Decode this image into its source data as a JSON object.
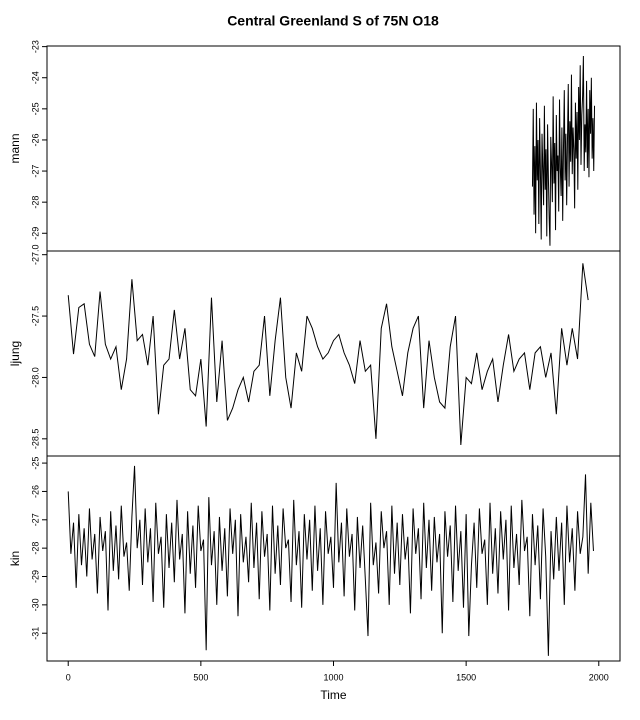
{
  "chart_data": [
    {
      "type": "line",
      "title": "Central Greenland S of 75N O18",
      "ylabel": "mann",
      "color": "#000000",
      "xlim": [
        -80,
        2080
      ],
      "ylim": [
        -29.57,
        -22.98
      ],
      "yticks": [
        -23,
        -24,
        -25,
        -26,
        -27,
        -28,
        -29
      ],
      "x": [
        1750,
        1753,
        1756,
        1759,
        1762,
        1765,
        1768,
        1771,
        1774,
        1777,
        1780,
        1783,
        1786,
        1789,
        1792,
        1795,
        1798,
        1801,
        1804,
        1807,
        1810,
        1813,
        1816,
        1819,
        1822,
        1825,
        1828,
        1831,
        1834,
        1837,
        1840,
        1843,
        1846,
        1849,
        1852,
        1855,
        1858,
        1861,
        1864,
        1867,
        1870,
        1873,
        1876,
        1879,
        1882,
        1885,
        1888,
        1891,
        1894,
        1897,
        1900,
        1903,
        1906,
        1909,
        1912,
        1915,
        1918,
        1921,
        1924,
        1927,
        1930,
        1933,
        1936,
        1939,
        1942,
        1945,
        1948,
        1951,
        1954,
        1957,
        1960,
        1963,
        1966,
        1969,
        1972,
        1975,
        1978,
        1981,
        1984
      ],
      "values": [
        -27.5,
        -25.0,
        -28.4,
        -26.2,
        -29.0,
        -24.8,
        -27.3,
        -26.0,
        -28.7,
        -25.3,
        -27.0,
        -29.2,
        -25.8,
        -26.9,
        -28.1,
        -24.9,
        -27.6,
        -26.3,
        -29.1,
        -25.5,
        -27.2,
        -28.5,
        -29.4,
        -25.9,
        -26.8,
        -28.0,
        -24.6,
        -27.4,
        -26.1,
        -28.9,
        -25.2,
        -27.0,
        -26.5,
        -28.3,
        -24.7,
        -26.9,
        -27.8,
        -25.6,
        -28.6,
        -26.2,
        -24.4,
        -27.3,
        -25.8,
        -28.1,
        -26.0,
        -24.2,
        -27.5,
        -25.4,
        -26.7,
        -23.9,
        -27.1,
        -25.6,
        -26.3,
        -28.2,
        -24.8,
        -26.6,
        -25.1,
        -27.6,
        -24.3,
        -26.0,
        -23.6,
        -26.8,
        -25.2,
        -24.6,
        -23.3,
        -27.0,
        -25.5,
        -26.4,
        -24.1,
        -26.9,
        -25.0,
        -27.2,
        -24.4,
        -25.8,
        -24.0,
        -26.6,
        -25.3,
        -27.0,
        -24.9
      ]
    },
    {
      "type": "line",
      "ylabel": "ljung",
      "color": "#000000",
      "xlim": [
        -80,
        2080
      ],
      "ylim": [
        -28.64,
        -26.97
      ],
      "yticks": [
        {
          "value": -27,
          "label": "-27.0"
        },
        -27.5,
        {
          "value": -28,
          "label": "-28.0"
        },
        -28.5
      ],
      "x": [
        0,
        20,
        40,
        60,
        80,
        100,
        120,
        140,
        160,
        180,
        200,
        220,
        240,
        260,
        280,
        300,
        320,
        340,
        360,
        380,
        400,
        420,
        440,
        460,
        480,
        500,
        520,
        540,
        560,
        580,
        600,
        620,
        640,
        660,
        680,
        700,
        720,
        740,
        760,
        780,
        800,
        820,
        840,
        860,
        880,
        900,
        920,
        940,
        960,
        980,
        1000,
        1020,
        1040,
        1060,
        1080,
        1100,
        1120,
        1140,
        1160,
        1180,
        1200,
        1220,
        1240,
        1260,
        1280,
        1300,
        1320,
        1340,
        1360,
        1380,
        1400,
        1420,
        1440,
        1460,
        1480,
        1500,
        1520,
        1540,
        1560,
        1580,
        1600,
        1620,
        1640,
        1660,
        1680,
        1700,
        1720,
        1740,
        1760,
        1780,
        1800,
        1820,
        1840,
        1860,
        1880,
        1900,
        1920,
        1940,
        1960
      ],
      "values": [
        -27.33,
        -27.81,
        -27.43,
        -27.4,
        -27.73,
        -27.83,
        -27.3,
        -27.73,
        -27.85,
        -27.75,
        -28.1,
        -27.85,
        -27.2,
        -27.7,
        -27.65,
        -27.9,
        -27.5,
        -28.3,
        -27.9,
        -27.85,
        -27.45,
        -27.85,
        -27.6,
        -28.1,
        -28.15,
        -27.85,
        -28.4,
        -27.35,
        -28.2,
        -27.7,
        -28.35,
        -28.25,
        -28.1,
        -28.0,
        -28.2,
        -27.95,
        -27.9,
        -27.5,
        -28.15,
        -27.7,
        -27.35,
        -28.0,
        -28.25,
        -27.8,
        -27.95,
        -27.5,
        -27.6,
        -27.75,
        -27.85,
        -27.8,
        -27.7,
        -27.65,
        -27.8,
        -27.9,
        -28.05,
        -27.7,
        -27.95,
        -27.9,
        -28.5,
        -27.6,
        -27.4,
        -27.75,
        -27.95,
        -28.15,
        -27.8,
        -27.6,
        -27.5,
        -28.25,
        -27.7,
        -28.0,
        -28.2,
        -28.25,
        -27.75,
        -27.5,
        -28.55,
        -28.0,
        -28.05,
        -27.8,
        -28.1,
        -27.95,
        -27.85,
        -28.2,
        -27.9,
        -27.65,
        -27.95,
        -27.85,
        -27.8,
        -28.1,
        -27.8,
        -27.75,
        -28.0,
        -27.8,
        -28.3,
        -27.6,
        -27.9,
        -27.6,
        -27.85,
        -27.07,
        -27.37
      ]
    },
    {
      "type": "line",
      "ylabel": "kin",
      "xlabel": "Time",
      "color": "#000000",
      "xlim": [
        -80,
        2080
      ],
      "xticks": [
        0,
        500,
        1000,
        1500,
        2000
      ],
      "ylim": [
        -31.98,
        -24.75
      ],
      "yticks": [
        -25,
        -26,
        -27,
        -28,
        -29,
        -30,
        -31
      ],
      "x": [
        0,
        10,
        20,
        30,
        40,
        50,
        60,
        70,
        80,
        90,
        100,
        110,
        120,
        130,
        140,
        150,
        160,
        170,
        180,
        190,
        200,
        210,
        220,
        230,
        240,
        250,
        260,
        270,
        280,
        290,
        300,
        310,
        320,
        330,
        340,
        350,
        360,
        370,
        380,
        390,
        400,
        410,
        420,
        430,
        440,
        450,
        460,
        470,
        480,
        490,
        500,
        510,
        520,
        530,
        540,
        550,
        560,
        570,
        580,
        590,
        600,
        610,
        620,
        630,
        640,
        650,
        660,
        670,
        680,
        690,
        700,
        710,
        720,
        730,
        740,
        750,
        760,
        770,
        780,
        790,
        800,
        810,
        820,
        830,
        840,
        850,
        860,
        870,
        880,
        890,
        900,
        910,
        920,
        930,
        940,
        950,
        960,
        970,
        980,
        990,
        1000,
        1010,
        1020,
        1030,
        1040,
        1050,
        1060,
        1070,
        1080,
        1090,
        1100,
        1110,
        1120,
        1130,
        1140,
        1150,
        1160,
        1170,
        1180,
        1190,
        1200,
        1210,
        1220,
        1230,
        1240,
        1250,
        1260,
        1270,
        1280,
        1290,
        1300,
        1310,
        1320,
        1330,
        1340,
        1350,
        1360,
        1370,
        1380,
        1390,
        1400,
        1410,
        1420,
        1430,
        1440,
        1450,
        1460,
        1470,
        1480,
        1490,
        1500,
        1510,
        1520,
        1530,
        1540,
        1550,
        1560,
        1570,
        1580,
        1590,
        1600,
        1610,
        1620,
        1630,
        1640,
        1650,
        1660,
        1670,
        1680,
        1690,
        1700,
        1710,
        1720,
        1730,
        1740,
        1750,
        1760,
        1770,
        1780,
        1790,
        1800,
        1810,
        1820,
        1830,
        1840,
        1850,
        1860,
        1870,
        1880,
        1890,
        1900,
        1910,
        1920,
        1930,
        1940,
        1950,
        1960,
        1970,
        1980
      ],
      "values": [
        -26.0,
        -28.2,
        -27.1,
        -29.4,
        -26.8,
        -28.6,
        -27.3,
        -29.0,
        -26.6,
        -28.4,
        -27.5,
        -29.6,
        -26.9,
        -28.1,
        -27.4,
        -30.2,
        -26.7,
        -28.8,
        -27.2,
        -29.1,
        -26.5,
        -28.3,
        -27.8,
        -29.5,
        -26.9,
        -25.1,
        -28.0,
        -27.0,
        -29.3,
        -26.6,
        -28.5,
        -27.3,
        -29.9,
        -26.4,
        -28.2,
        -27.6,
        -30.1,
        -26.8,
        -28.7,
        -27.1,
        -29.2,
        -26.3,
        -28.4,
        -27.5,
        -30.3,
        -26.7,
        -28.9,
        -27.2,
        -29.4,
        -26.5,
        -28.1,
        -27.7,
        -31.6,
        -26.2,
        -28.6,
        -27.4,
        -30.0,
        -26.9,
        -28.8,
        -27.3,
        -29.7,
        -26.6,
        -28.2,
        -27.0,
        -30.4,
        -26.8,
        -28.5,
        -27.6,
        -29.2,
        -26.4,
        -28.7,
        -27.1,
        -29.8,
        -26.7,
        -28.3,
        -27.5,
        -30.2,
        -26.5,
        -28.9,
        -27.2,
        -29.3,
        -26.6,
        -28.0,
        -27.7,
        -29.9,
        -26.3,
        -28.6,
        -27.4,
        -30.1,
        -26.8,
        -28.4,
        -27.0,
        -29.5,
        -26.5,
        -28.8,
        -27.3,
        -30.0,
        -26.7,
        -28.2,
        -27.6,
        -29.4,
        -25.7,
        -28.5,
        -27.1,
        -29.7,
        -26.6,
        -28.3,
        -27.5,
        -30.2,
        -26.9,
        -28.7,
        -27.2,
        -29.1,
        -31.1,
        -26.4,
        -28.6,
        -27.8,
        -29.6,
        -26.7,
        -28.0,
        -27.4,
        -30.0,
        -26.5,
        -28.9,
        -27.1,
        -29.3,
        -26.8,
        -28.4,
        -27.6,
        -30.3,
        -26.6,
        -28.2,
        -27.3,
        -29.8,
        -26.4,
        -28.7,
        -27.0,
        -29.5,
        -26.9,
        -28.5,
        -27.5,
        -31.0,
        -26.7,
        -28.3,
        -27.2,
        -29.9,
        -26.5,
        -28.8,
        -27.4,
        -30.1,
        -26.8,
        -31.1,
        -28.6,
        -27.1,
        -29.4,
        -26.6,
        -28.2,
        -27.7,
        -30.0,
        -26.4,
        -28.9,
        -27.3,
        -29.6,
        -26.7,
        -28.4,
        -27.0,
        -30.2,
        -26.5,
        -28.7,
        -27.5,
        -29.3,
        -26.3,
        -28.1,
        -27.6,
        -30.4,
        -26.8,
        -28.6,
        -27.2,
        -29.8,
        -26.6,
        -28.3,
        -31.8,
        -27.4,
        -29.1,
        -26.9,
        -28.8,
        -27.1,
        -30.0,
        -26.5,
        -28.5,
        -27.3,
        -29.5,
        -26.7,
        -28.2,
        -27.6,
        -25.4,
        -28.9,
        -26.4,
        -28.1
      ]
    }
  ]
}
